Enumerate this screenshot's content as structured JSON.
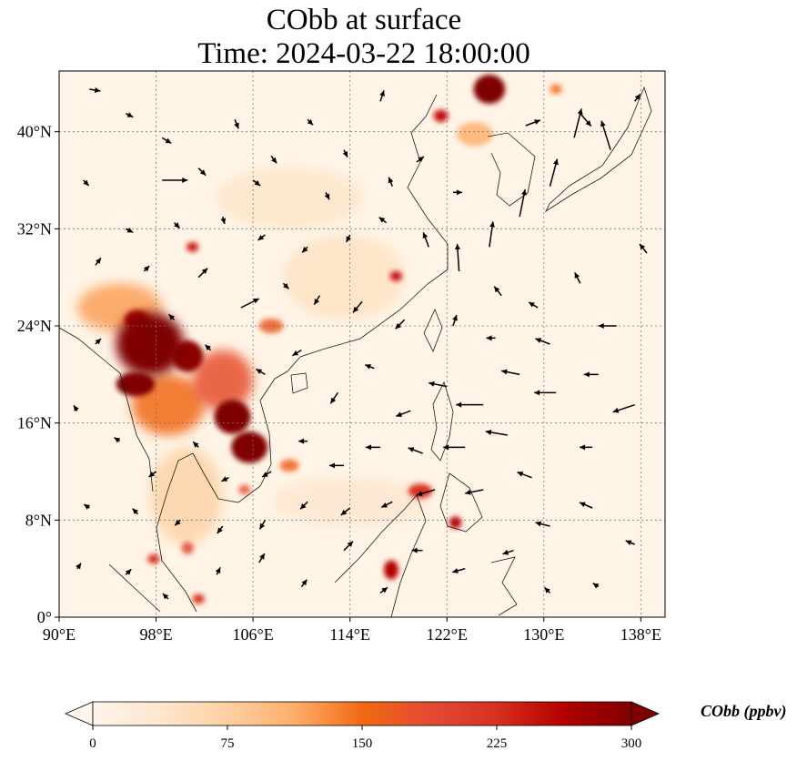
{
  "title": {
    "line1": "CObb at surface",
    "line2": "Time: 2024-03-22 18:00:00"
  },
  "map": {
    "projection": "PlateCarree",
    "lon_range": [
      90,
      140
    ],
    "lat_range": [
      0,
      45
    ],
    "gridlines": "dotted",
    "lon_ticks": [
      {
        "value": 90,
        "label": "90°E"
      },
      {
        "value": 98,
        "label": "98°E"
      },
      {
        "value": 106,
        "label": "106°E"
      },
      {
        "value": 114,
        "label": "114°E"
      },
      {
        "value": 122,
        "label": "122°E"
      },
      {
        "value": 130,
        "label": "130°E"
      },
      {
        "value": 138,
        "label": "138°E"
      }
    ],
    "lat_ticks": [
      {
        "value": 0,
        "label": "0°"
      },
      {
        "value": 8,
        "label": "8°N"
      },
      {
        "value": 16,
        "label": "16°N"
      },
      {
        "value": 24,
        "label": "24°N"
      },
      {
        "value": 32,
        "label": "32°N"
      },
      {
        "value": 40,
        "label": "40°N"
      }
    ],
    "hotspots": [
      {
        "lon": 97.5,
        "lat": 22.5,
        "rx": 2.8,
        "ry": 2.6,
        "level": 300
      },
      {
        "lon": 96.3,
        "lat": 19.2,
        "rx": 1.6,
        "ry": 1.0,
        "level": 300
      },
      {
        "lon": 100.6,
        "lat": 21.5,
        "rx": 1.3,
        "ry": 1.3,
        "level": 290
      },
      {
        "lon": 104.3,
        "lat": 16.5,
        "rx": 1.5,
        "ry": 1.4,
        "level": 300
      },
      {
        "lon": 105.7,
        "lat": 14.0,
        "rx": 1.5,
        "ry": 1.3,
        "level": 300
      },
      {
        "lon": 96.4,
        "lat": 24.5,
        "rx": 1.0,
        "ry": 0.8,
        "level": 270
      },
      {
        "lon": 103.5,
        "lat": 19.5,
        "rx": 2.5,
        "ry": 2.5,
        "level": 180
      },
      {
        "lon": 99.0,
        "lat": 17.5,
        "rx": 3.0,
        "ry": 2.5,
        "level": 150
      },
      {
        "lon": 95.0,
        "lat": 25.5,
        "rx": 3.5,
        "ry": 2.0,
        "level": 120
      },
      {
        "lon": 125.5,
        "lat": 43.5,
        "rx": 1.3,
        "ry": 1.2,
        "level": 300
      },
      {
        "lon": 121.5,
        "lat": 41.3,
        "rx": 0.6,
        "ry": 0.5,
        "level": 250
      },
      {
        "lon": 117.4,
        "lat": 3.9,
        "rx": 0.6,
        "ry": 0.8,
        "level": 260
      },
      {
        "lon": 122.7,
        "lat": 7.8,
        "rx": 0.5,
        "ry": 0.5,
        "level": 260
      },
      {
        "lon": 119.8,
        "lat": 10.4,
        "rx": 1.0,
        "ry": 0.6,
        "level": 220
      },
      {
        "lon": 117.8,
        "lat": 28.1,
        "rx": 0.5,
        "ry": 0.4,
        "level": 250
      },
      {
        "lon": 101.0,
        "lat": 30.5,
        "rx": 0.5,
        "ry": 0.4,
        "level": 240
      },
      {
        "lon": 107.5,
        "lat": 24.0,
        "rx": 1.0,
        "ry": 0.6,
        "level": 170
      },
      {
        "lon": 100.6,
        "lat": 5.7,
        "rx": 0.5,
        "ry": 0.5,
        "level": 200
      },
      {
        "lon": 97.8,
        "lat": 4.8,
        "rx": 0.5,
        "ry": 0.4,
        "level": 220
      },
      {
        "lon": 101.5,
        "lat": 1.5,
        "rx": 0.5,
        "ry": 0.4,
        "level": 220
      },
      {
        "lon": 105.3,
        "lat": 10.5,
        "rx": 0.5,
        "ry": 0.4,
        "level": 180
      },
      {
        "lon": 109.0,
        "lat": 12.5,
        "rx": 0.8,
        "ry": 0.5,
        "level": 160
      },
      {
        "lon": 124.3,
        "lat": 39.8,
        "rx": 1.5,
        "ry": 1.0,
        "level": 110
      },
      {
        "lon": 131.0,
        "lat": 43.5,
        "rx": 0.5,
        "ry": 0.4,
        "level": 150
      },
      {
        "lon": 113.5,
        "lat": 28.0,
        "rx": 5.0,
        "ry": 3.5,
        "level": 45
      },
      {
        "lon": 109.0,
        "lat": 34.5,
        "rx": 6.0,
        "ry": 2.5,
        "level": 40
      },
      {
        "lon": 114.0,
        "lat": 9.5,
        "rx": 6.5,
        "ry": 2.0,
        "level": 35
      },
      {
        "lon": 100.5,
        "lat": 10.0,
        "rx": 3.0,
        "ry": 4.0,
        "level": 70
      }
    ],
    "wind_vectors": [
      {
        "lon": 92.5,
        "lat": 43.5,
        "u": 0.6,
        "v": -0.1
      },
      {
        "lon": 95.5,
        "lat": 41.5,
        "u": 0.4,
        "v": -0.2
      },
      {
        "lon": 98.5,
        "lat": 39.5,
        "u": 0.5,
        "v": -0.3
      },
      {
        "lon": 101.5,
        "lat": 37.0,
        "u": 0.4,
        "v": -0.4
      },
      {
        "lon": 104.5,
        "lat": 41.0,
        "u": 0.2,
        "v": -0.5
      },
      {
        "lon": 107.5,
        "lat": 38.0,
        "u": 0.3,
        "v": -0.4
      },
      {
        "lon": 110.5,
        "lat": 41.0,
        "u": 0.3,
        "v": -0.3
      },
      {
        "lon": 113.5,
        "lat": 38.5,
        "u": 0.2,
        "v": -0.4
      },
      {
        "lon": 116.5,
        "lat": 42.5,
        "u": 0.2,
        "v": 0.6
      },
      {
        "lon": 119.5,
        "lat": 37.5,
        "u": 0.4,
        "v": 0.3
      },
      {
        "lon": 122.5,
        "lat": 35.0,
        "u": 0.5,
        "v": 0.0
      },
      {
        "lon": 128.5,
        "lat": 40.5,
        "u": 0.8,
        "v": 0.3
      },
      {
        "lon": 132.5,
        "lat": 39.5,
        "u": 0.4,
        "v": 1.6
      },
      {
        "lon": 135.5,
        "lat": 38.5,
        "u": -0.5,
        "v": 1.6
      },
      {
        "lon": 137.5,
        "lat": 42.5,
        "u": 0.3,
        "v": 0.4
      },
      {
        "lon": 133.0,
        "lat": 41.5,
        "u": 0.6,
        "v": -0.7
      },
      {
        "lon": 130.5,
        "lat": 35.5,
        "u": 0.4,
        "v": 1.5
      },
      {
        "lon": 128.0,
        "lat": 33.0,
        "u": 0.3,
        "v": 1.5
      },
      {
        "lon": 125.5,
        "lat": 30.5,
        "u": 0.2,
        "v": 1.4
      },
      {
        "lon": 123.0,
        "lat": 28.5,
        "u": -0.1,
        "v": 1.5
      },
      {
        "lon": 120.5,
        "lat": 30.5,
        "u": -0.3,
        "v": 0.8
      },
      {
        "lon": 117.0,
        "lat": 32.5,
        "u": -0.4,
        "v": 0.3
      },
      {
        "lon": 114.0,
        "lat": 31.5,
        "u": -0.2,
        "v": -0.4
      },
      {
        "lon": 110.5,
        "lat": 30.5,
        "u": -0.3,
        "v": -0.3
      },
      {
        "lon": 107.0,
        "lat": 31.5,
        "u": -0.4,
        "v": -0.3
      },
      {
        "lon": 103.5,
        "lat": 33.0,
        "u": 0.1,
        "v": -0.4
      },
      {
        "lon": 99.5,
        "lat": 32.5,
        "u": 0.3,
        "v": -0.3
      },
      {
        "lon": 95.5,
        "lat": 32.0,
        "u": 0.4,
        "v": -0.2
      },
      {
        "lon": 92.0,
        "lat": 36.0,
        "u": 0.3,
        "v": -0.3
      },
      {
        "lon": 98.5,
        "lat": 36.0,
        "u": 1.4,
        "v": 0.0
      },
      {
        "lon": 93.0,
        "lat": 29.0,
        "u": 0.3,
        "v": 0.4
      },
      {
        "lon": 97.0,
        "lat": 28.5,
        "u": 0.3,
        "v": 0.3
      },
      {
        "lon": 101.5,
        "lat": 28.0,
        "u": 0.5,
        "v": 0.5
      },
      {
        "lon": 105.0,
        "lat": 25.5,
        "u": 1.0,
        "v": 0.5
      },
      {
        "lon": 108.5,
        "lat": 27.5,
        "u": 0.3,
        "v": -0.3
      },
      {
        "lon": 111.5,
        "lat": 26.5,
        "u": -0.3,
        "v": -0.5
      },
      {
        "lon": 115.0,
        "lat": 26.0,
        "u": -0.5,
        "v": -0.6
      },
      {
        "lon": 118.5,
        "lat": 24.5,
        "u": -0.5,
        "v": -0.5
      },
      {
        "lon": 122.5,
        "lat": 24.0,
        "u": 0.2,
        "v": 0.6
      },
      {
        "lon": 126.0,
        "lat": 23.0,
        "u": -0.5,
        "v": 0.0
      },
      {
        "lon": 129.5,
        "lat": 25.5,
        "u": -0.5,
        "v": 0.3
      },
      {
        "lon": 133.0,
        "lat": 27.5,
        "u": -0.3,
        "v": 0.6
      },
      {
        "lon": 136.0,
        "lat": 24.0,
        "u": -1.0,
        "v": 0.0
      },
      {
        "lon": 138.5,
        "lat": 30.0,
        "u": -0.4,
        "v": 0.5
      },
      {
        "lon": 137.5,
        "lat": 17.5,
        "u": -1.2,
        "v": -0.4
      },
      {
        "lon": 134.5,
        "lat": 20.0,
        "u": -0.8,
        "v": 0.0
      },
      {
        "lon": 131.0,
        "lat": 18.5,
        "u": -1.2,
        "v": 0.0
      },
      {
        "lon": 128.0,
        "lat": 20.0,
        "u": -1.0,
        "v": 0.2
      },
      {
        "lon": 125.0,
        "lat": 17.5,
        "u": -1.5,
        "v": 0.0
      },
      {
        "lon": 122.0,
        "lat": 19.0,
        "u": -1.0,
        "v": 0.2
      },
      {
        "lon": 119.0,
        "lat": 17.0,
        "u": -0.8,
        "v": -0.3
      },
      {
        "lon": 116.0,
        "lat": 20.5,
        "u": -0.5,
        "v": 0.2
      },
      {
        "lon": 113.0,
        "lat": 18.5,
        "u": -0.4,
        "v": -0.6
      },
      {
        "lon": 110.0,
        "lat": 22.0,
        "u": -0.5,
        "v": -0.3
      },
      {
        "lon": 107.0,
        "lat": 20.0,
        "u": -0.5,
        "v": 0.3
      },
      {
        "lon": 102.5,
        "lat": 22.0,
        "u": -0.3,
        "v": 0.3
      },
      {
        "lon": 99.5,
        "lat": 24.5,
        "u": -0.3,
        "v": 0.3
      },
      {
        "lon": 93.0,
        "lat": 22.5,
        "u": 0.3,
        "v": 0.3
      },
      {
        "lon": 91.5,
        "lat": 17.0,
        "u": -0.2,
        "v": 0.3
      },
      {
        "lon": 95.0,
        "lat": 14.5,
        "u": -0.3,
        "v": 0.2
      },
      {
        "lon": 98.0,
        "lat": 12.0,
        "u": -0.4,
        "v": -0.3
      },
      {
        "lon": 101.5,
        "lat": 14.0,
        "u": -0.3,
        "v": 0.3
      },
      {
        "lon": 104.0,
        "lat": 11.5,
        "u": -0.4,
        "v": -0.2
      },
      {
        "lon": 107.5,
        "lat": 12.0,
        "u": -0.5,
        "v": -0.3
      },
      {
        "lon": 110.5,
        "lat": 14.5,
        "u": -0.5,
        "v": 0.0
      },
      {
        "lon": 113.5,
        "lat": 12.5,
        "u": -0.8,
        "v": 0.0
      },
      {
        "lon": 116.5,
        "lat": 14.0,
        "u": -0.8,
        "v": 0.0
      },
      {
        "lon": 120.0,
        "lat": 13.5,
        "u": -0.8,
        "v": 0.3
      },
      {
        "lon": 123.5,
        "lat": 14.0,
        "u": -1.2,
        "v": 0.0
      },
      {
        "lon": 127.0,
        "lat": 15.0,
        "u": -1.2,
        "v": 0.2
      },
      {
        "lon": 129.0,
        "lat": 11.5,
        "u": -0.8,
        "v": 0.3
      },
      {
        "lon": 125.0,
        "lat": 10.5,
        "u": -1.0,
        "v": -0.2
      },
      {
        "lon": 121.0,
        "lat": 10.5,
        "u": -1.0,
        "v": -0.3
      },
      {
        "lon": 117.5,
        "lat": 9.5,
        "u": -0.6,
        "v": -0.3
      },
      {
        "lon": 114.0,
        "lat": 9.0,
        "u": -0.5,
        "v": -0.4
      },
      {
        "lon": 110.5,
        "lat": 9.5,
        "u": -0.4,
        "v": -0.4
      },
      {
        "lon": 107.0,
        "lat": 8.0,
        "u": -0.3,
        "v": -0.5
      },
      {
        "lon": 103.5,
        "lat": 7.5,
        "u": -0.3,
        "v": -0.4
      },
      {
        "lon": 100.0,
        "lat": 8.0,
        "u": -0.3,
        "v": -0.3
      },
      {
        "lon": 96.5,
        "lat": 8.5,
        "u": -0.3,
        "v": 0.3
      },
      {
        "lon": 92.5,
        "lat": 9.0,
        "u": -0.3,
        "v": 0.2
      },
      {
        "lon": 91.5,
        "lat": 4.0,
        "u": 0.2,
        "v": 0.3
      },
      {
        "lon": 95.5,
        "lat": 3.5,
        "u": 0.3,
        "v": 0.3
      },
      {
        "lon": 99.0,
        "lat": 1.5,
        "u": -0.3,
        "v": 0.3
      },
      {
        "lon": 103.0,
        "lat": 3.5,
        "u": 0.2,
        "v": 0.4
      },
      {
        "lon": 106.5,
        "lat": 4.5,
        "u": 0.3,
        "v": 0.5
      },
      {
        "lon": 110.0,
        "lat": 2.5,
        "u": 0.3,
        "v": 0.4
      },
      {
        "lon": 113.5,
        "lat": 5.5,
        "u": 0.5,
        "v": 0.5
      },
      {
        "lon": 116.5,
        "lat": 2.0,
        "u": 0.4,
        "v": 0.3
      },
      {
        "lon": 120.0,
        "lat": 5.5,
        "u": -0.6,
        "v": 0.0
      },
      {
        "lon": 123.5,
        "lat": 4.0,
        "u": -0.7,
        "v": -0.2
      },
      {
        "lon": 127.5,
        "lat": 5.5,
        "u": -0.6,
        "v": -0.2
      },
      {
        "lon": 130.5,
        "lat": 7.5,
        "u": -0.8,
        "v": 0.2
      },
      {
        "lon": 134.0,
        "lat": 9.0,
        "u": -0.7,
        "v": 0.3
      },
      {
        "lon": 137.5,
        "lat": 6.0,
        "u": -0.5,
        "v": 0.2
      },
      {
        "lon": 134.5,
        "lat": 2.5,
        "u": -0.3,
        "v": 0.2
      },
      {
        "lon": 130.5,
        "lat": 2.0,
        "u": -0.3,
        "v": 0.3
      },
      {
        "lon": 134.0,
        "lat": 14.0,
        "u": -0.7,
        "v": 0.0
      },
      {
        "lon": 130.5,
        "lat": 22.5,
        "u": -0.8,
        "v": 0.3
      },
      {
        "lon": 126.5,
        "lat": 26.5,
        "u": -0.4,
        "v": 0.5
      },
      {
        "lon": 117.5,
        "lat": 35.5,
        "u": -0.2,
        "v": 0.5
      },
      {
        "lon": 112.0,
        "lat": 35.0,
        "u": 0.2,
        "v": -0.4
      },
      {
        "lon": 106.0,
        "lat": 36.0,
        "u": 0.4,
        "v": -0.3
      }
    ]
  },
  "colorbar": {
    "label": "CObb (ppbv)",
    "vmin": 0,
    "vmax": 300,
    "extend": "both",
    "ticks": [
      {
        "value": 0,
        "label": "0"
      },
      {
        "value": 75,
        "label": "75"
      },
      {
        "value": 150,
        "label": "150"
      },
      {
        "value": 225,
        "label": "225"
      },
      {
        "value": 300,
        "label": "300"
      }
    ]
  }
}
